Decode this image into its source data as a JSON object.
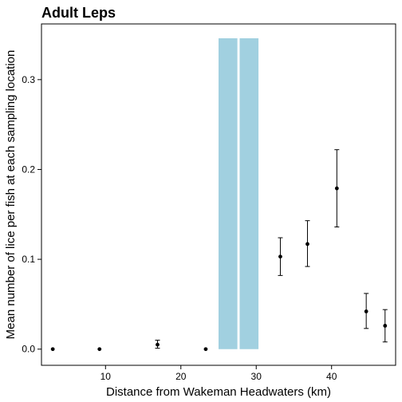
{
  "chart_data": {
    "type": "scatter",
    "title": "Adult Leps",
    "xlabel": "Distance from Wakeman Headwaters (km)",
    "ylabel": "Mean number of lice per fish at each sampling location",
    "xlim": [
      1.5,
      48.5
    ],
    "ylim": [
      -0.018,
      0.362
    ],
    "xticks": [
      10,
      20,
      30,
      40
    ],
    "yticks": [
      0.0,
      0.1,
      0.2,
      0.3
    ],
    "xtick_labels": [
      "10",
      "20",
      "30",
      "40"
    ],
    "ytick_labels": [
      "0.0",
      "0.1",
      "0.2",
      "0.3"
    ],
    "grid": false,
    "highlight_bars": [
      {
        "x_start": 25.0,
        "x_end": 27.5,
        "color": "#a1d0e0"
      },
      {
        "x_start": 27.8,
        "x_end": 30.3,
        "color": "#a1d0e0"
      }
    ],
    "points": [
      {
        "x": 3.0,
        "y": 0.0,
        "err_low": 0.0,
        "err_high": 0.0
      },
      {
        "x": 9.2,
        "y": 0.0,
        "err_low": 0.0,
        "err_high": 0.0
      },
      {
        "x": 16.9,
        "y": 0.005,
        "err_low": 0.001,
        "err_high": 0.01
      },
      {
        "x": 23.3,
        "y": 0.0,
        "err_low": 0.0,
        "err_high": 0.0
      },
      {
        "x": 33.2,
        "y": 0.103,
        "err_low": 0.082,
        "err_high": 0.124
      },
      {
        "x": 36.8,
        "y": 0.117,
        "err_low": 0.092,
        "err_high": 0.143
      },
      {
        "x": 40.7,
        "y": 0.179,
        "err_low": 0.136,
        "err_high": 0.222
      },
      {
        "x": 44.6,
        "y": 0.042,
        "err_low": 0.023,
        "err_high": 0.062
      },
      {
        "x": 47.1,
        "y": 0.026,
        "err_low": 0.008,
        "err_high": 0.044
      }
    ]
  }
}
